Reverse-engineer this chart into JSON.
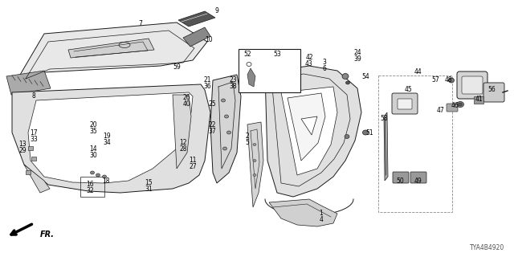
{
  "background_color": "#ffffff",
  "line_color": "#1a1a1a",
  "label_color": "#000000",
  "diagram_code": "TYA4B4920",
  "figsize": [
    6.4,
    3.2
  ],
  "dpi": 100
}
